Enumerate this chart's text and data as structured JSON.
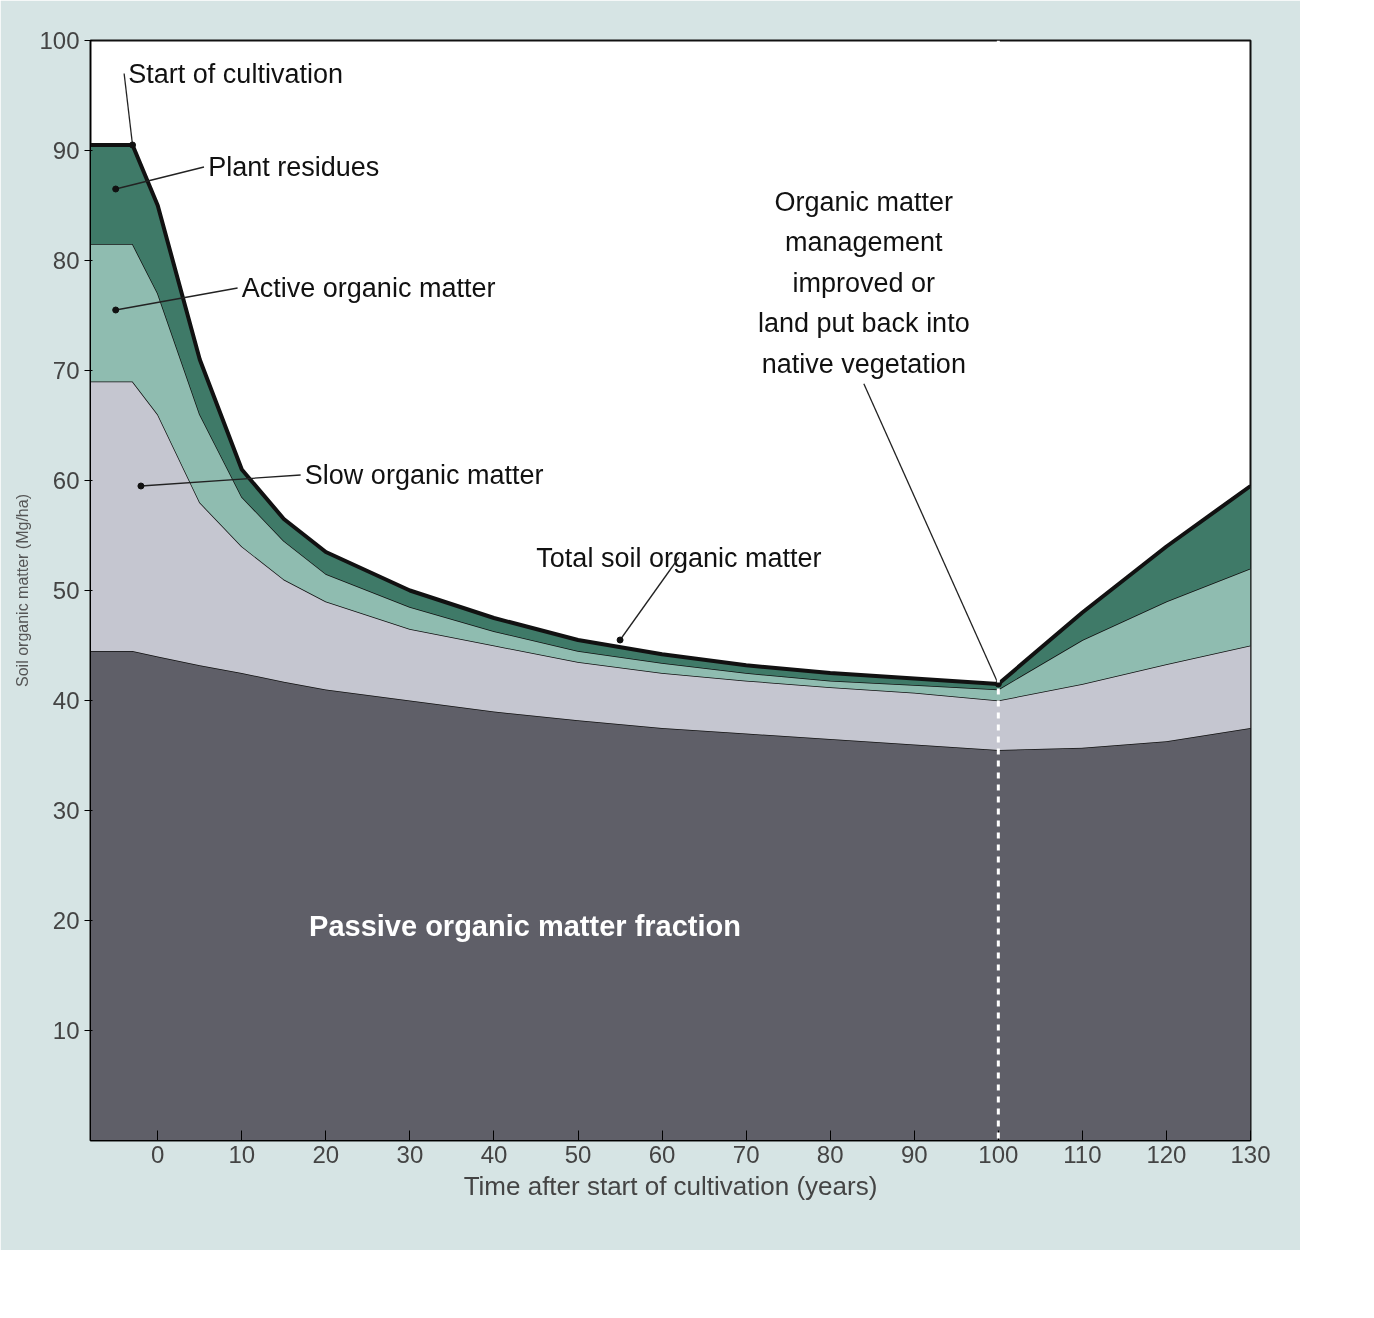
{
  "chart_data": {
    "type": "area",
    "stacked": true,
    "xlabel": "Time after start of cultivation (years)",
    "ylabel": "Soil organic matter (Mg/ha)",
    "x": [
      -8,
      -3,
      0,
      5,
      10,
      15,
      20,
      30,
      40,
      50,
      60,
      70,
      80,
      90,
      100,
      110,
      120,
      130
    ],
    "series": [
      {
        "color": "#5f5f68",
        "values": [
          44.5,
          44.5,
          44,
          43.2,
          42.5,
          41.7,
          41,
          40,
          39,
          38.2,
          37.5,
          37,
          36.5,
          36,
          35.5,
          35.7,
          36.3,
          37.5
        ]
      },
      {
        "color": "#c5c6d0",
        "values": [
          24.5,
          24.5,
          22,
          14.8,
          11.5,
          9.3,
          8,
          6.5,
          6,
          5.3,
          5,
          4.8,
          4.7,
          4.7,
          4.5,
          5.8,
          7,
          7.5
        ]
      },
      {
        "color": "#8fbcb0",
        "values": [
          12.5,
          12.5,
          11,
          8,
          4.5,
          3.5,
          2.5,
          2,
          1.3,
          1,
          0.9,
          0.7,
          0.6,
          0.7,
          1,
          4,
          5.7,
          7
        ]
      },
      {
        "color": "#3f7a68",
        "values": [
          9,
          9,
          8,
          5,
          2.5,
          2,
          2,
          1.5,
          1.2,
          1,
          0.8,
          0.7,
          0.7,
          0.6,
          0.5,
          2.5,
          5,
          7.5
        ]
      }
    ],
    "xlim": [
      -8,
      130
    ],
    "ylim": [
      0,
      100
    ],
    "xticks": [
      0,
      10,
      20,
      30,
      40,
      50,
      60,
      70,
      80,
      90,
      100,
      110,
      120,
      130
    ],
    "yticks": [
      10,
      20,
      30,
      40,
      50,
      60,
      70,
      80,
      90,
      100
    ],
    "grid": false,
    "ref_lines": [
      {
        "axis": "x",
        "value": 100,
        "color": "#ffffff",
        "line_style": "dashed"
      }
    ],
    "annotations": [
      {
        "text": "Start of cultivation",
        "x": -3,
        "y": 90.5
      },
      {
        "text": "Plant residues",
        "x": -5,
        "y": 86.5
      },
      {
        "text": "Active organic matter",
        "x": -5,
        "y": 75.5
      },
      {
        "text": "Slow organic matter",
        "x": -2,
        "y": 59.5
      },
      {
        "text": "Total soil organic matter",
        "x": 55,
        "y": 45.5
      },
      {
        "text": "Organic matter\nmanagement\nimproved or\nland put back into\nnative vegetation",
        "x": 100,
        "y": 41.5
      },
      "Passive organic matter fraction"
    ]
  }
}
